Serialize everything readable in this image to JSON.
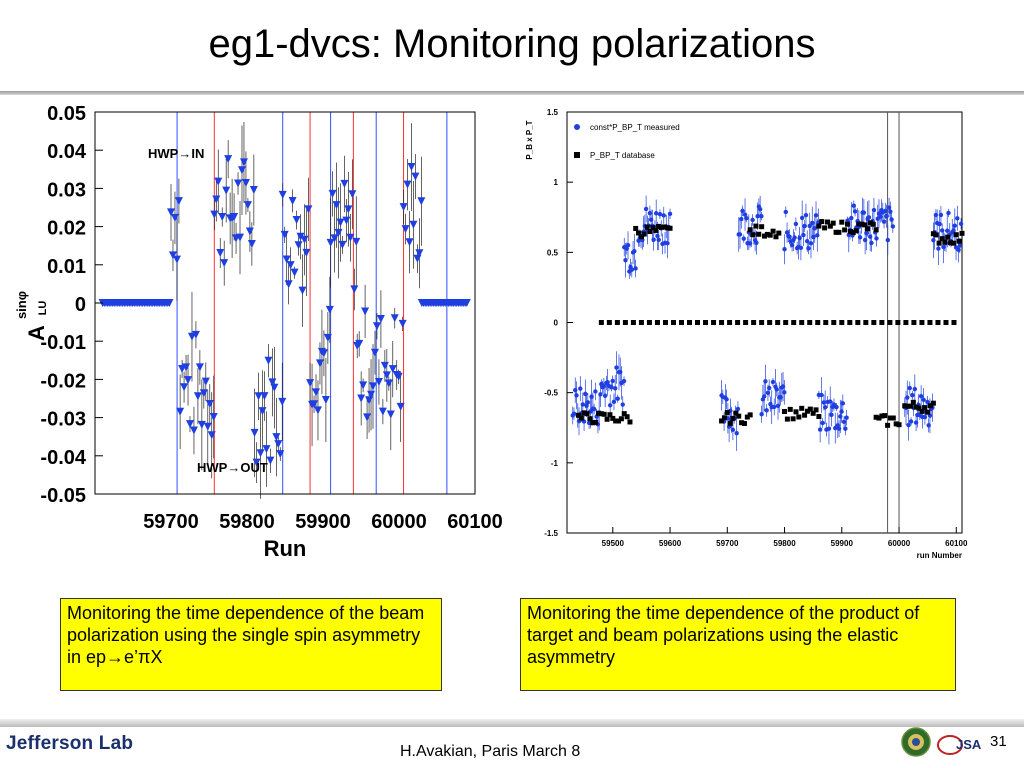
{
  "slide": {
    "title": "eg1-dvcs: Monitoring polarizations",
    "caption_left": "Monitoring the time dependence of the  beam polarization using the single spin  asymmetry in ep→e’πX",
    "caption_right": "Monitoring the time dependence of the product of target and beam polarizations using the elastic asymmetry",
    "footer": "H.Avakian, Paris March 8",
    "page_number": "31",
    "logo_text": "Jefferson Lab",
    "jsa_text": "JSA"
  },
  "chart_data": [
    {
      "type": "scatter",
      "title": "",
      "xlabel": "Run",
      "ylabel": "A_LU^sinφ",
      "xlim": [
        59600,
        60100
      ],
      "ylim": [
        -0.05,
        0.05
      ],
      "x_ticks": [
        "59700",
        "59800",
        "59900",
        "60000",
        "60100"
      ],
      "y_ticks": [
        "0.05",
        "0.04",
        "0.03",
        "0.02",
        "0.01",
        "0",
        "-0.01",
        "-0.02",
        "-0.03",
        "-0.04",
        "-0.05"
      ],
      "annotations": [
        "HWP→IN",
        "HWP→OUT"
      ],
      "marker_color": "#1f3fe0",
      "marker": "down-triangle",
      "hwp_in_runs": [
        59757,
        59883,
        59940,
        60006
      ],
      "hwp_out_runs": [
        59708,
        59847,
        59910,
        59970,
        60063
      ],
      "line_colors": {
        "in": "#ff3030",
        "out": "#3050ff"
      },
      "series": [
        {
          "segments": [
            {
              "x": [
                59610,
                59700
              ],
              "y": 0.0
            },
            {
              "x": [
                59700,
                59712
              ],
              "y": 0.024
            },
            {
              "x": [
                59712,
                59757
              ],
              "y": -0.022
            },
            {
              "x": [
                59757,
                59810
              ],
              "y": 0.024
            },
            {
              "x": [
                59810,
                59847
              ],
              "y": -0.027
            },
            {
              "x": [
                59847,
                59883
              ],
              "y": 0.018
            },
            {
              "x": [
                59883,
                59910
              ],
              "y": -0.014
            },
            {
              "x": [
                59910,
                59945
              ],
              "y": 0.017
            },
            {
              "x": [
                59945,
                60006
              ],
              "y": -0.016
            },
            {
              "x": [
                60006,
                60030
              ],
              "y": 0.024
            },
            {
              "x": [
                60030,
                60065
              ],
              "y": 0.0
            },
            {
              "x": [
                60065,
                60090
              ],
              "y": 0.0
            }
          ]
        }
      ]
    },
    {
      "type": "scatter",
      "title": "",
      "xlabel": "run Number",
      "ylabel": "P_B x P_T",
      "xlim": [
        59420,
        60110
      ],
      "ylim": [
        -1.5,
        1.5
      ],
      "x_ticks": [
        "59500",
        "59600",
        "59700",
        "59800",
        "59900",
        "60000",
        "60100"
      ],
      "y_ticks": [
        "1.5",
        "1",
        "0.5",
        "0",
        "-0.5",
        "-1",
        "-1.5"
      ],
      "vertical_lines_runs": [
        59980,
        60000
      ],
      "legend": [
        "const*P_BP_T measured",
        "P_BP_T database"
      ],
      "legend_position": "top-left",
      "series": [
        {
          "name": "const*P_BP_T measured",
          "color": "#1f3fe0",
          "marker": "circle",
          "groups": [
            {
              "x": [
                59430,
                59480
              ],
              "y": -0.6
            },
            {
              "x": [
                59480,
                59520
              ],
              "y": -0.45
            },
            {
              "x": [
                59520,
                59540
              ],
              "y": 0.5
            },
            {
              "x": [
                59545,
                59600
              ],
              "y": 0.7
            },
            {
              "x": [
                59690,
                59720
              ],
              "y": -0.65
            },
            {
              "x": [
                59720,
                59760
              ],
              "y": 0.7
            },
            {
              "x": [
                59760,
                59800
              ],
              "y": -0.55
            },
            {
              "x": [
                59800,
                59860
              ],
              "y": 0.65
            },
            {
              "x": [
                59860,
                59910
              ],
              "y": -0.65
            },
            {
              "x": [
                59910,
                59990
              ],
              "y": 0.7
            },
            {
              "x": [
                60010,
                60060
              ],
              "y": -0.6
            },
            {
              "x": [
                60060,
                60110
              ],
              "y": 0.65
            }
          ]
        },
        {
          "name": "P_BP_T database",
          "color": "#000000",
          "marker": "square",
          "groups": [
            {
              "x": [
                59440,
                59530
              ],
              "y": -0.68
            },
            {
              "x": [
                59540,
                59600
              ],
              "y": 0.65
            },
            {
              "x": [
                59690,
                59740
              ],
              "y": -0.68
            },
            {
              "x": [
                59740,
                59790
              ],
              "y": 0.65
            },
            {
              "x": [
                59800,
                59860
              ],
              "y": -0.65
            },
            {
              "x": [
                59860,
                59960
              ],
              "y": 0.68
            },
            {
              "x": [
                59960,
                60000
              ],
              "y": -0.7
            },
            {
              "x": [
                60010,
                60060
              ],
              "y": -0.6
            },
            {
              "x": [
                60060,
                60110
              ],
              "y": 0.6
            },
            {
              "x": [
                59480,
                60100
              ],
              "y": 0.0
            }
          ]
        }
      ]
    }
  ]
}
